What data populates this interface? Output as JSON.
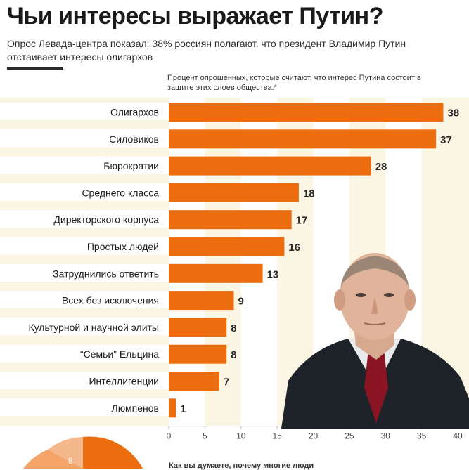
{
  "header": {
    "title": "Чьи интересы выражает Путин?",
    "subtitle": "Опрос Левада-центра показал: 38% россиян полагают, что президент Владимир Путин отстаивает интересы олигархов",
    "chart_note": "Процент опрошенных, которые считают, что интерес Путина состоит в защите этих слоев общества:*"
  },
  "bottom": {
    "question": "Как вы думаете, почему многие люди",
    "pie_label": "8"
  },
  "colors": {
    "bar": "#ec6d0f",
    "background_band": "#fbf5e3",
    "white_band": "#ffffff"
  },
  "chart_data": {
    "type": "bar",
    "orientation": "horizontal",
    "categories": [
      "Олигархов",
      "Силовиков",
      "Бюрократии",
      "Среднего класса",
      "Директорского корпуса",
      "Простых людей",
      "Затруднились ответить",
      "Всех без исключения",
      "Культурной и научной элиты",
      "“Семьи” Ельцина",
      "Интеллигенции",
      "Люмпенов"
    ],
    "values": [
      38,
      37,
      28,
      18,
      17,
      16,
      13,
      9,
      8,
      8,
      7,
      1
    ],
    "value_labels": [
      "38",
      "37",
      "28",
      "18",
      "17",
      "16",
      "13",
      "9",
      "8",
      "8",
      "7",
      "1"
    ],
    "xlim": [
      0,
      40
    ],
    "xticks": [
      0,
      5,
      10,
      15,
      20,
      25,
      30,
      35,
      40
    ],
    "xtick_labels": [
      "0",
      "5",
      "10",
      "15",
      "20",
      "25",
      "30",
      "35",
      "40"
    ],
    "grid": "vertical bands"
  }
}
